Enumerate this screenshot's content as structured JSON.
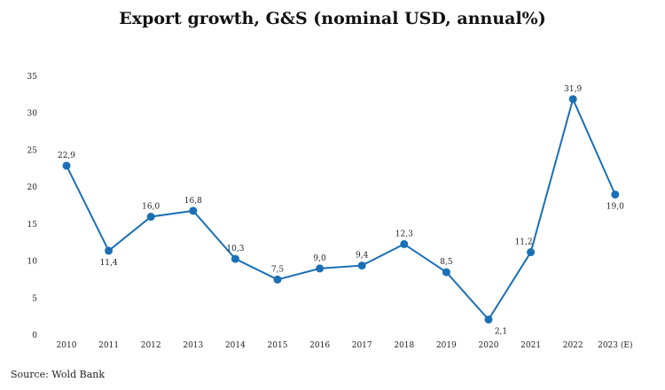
{
  "chart_data": {
    "type": "line",
    "title": "Export growth, G&S (nominal USD, annual%)",
    "xlabel": "",
    "ylabel": "",
    "categories": [
      "2010",
      "2011",
      "2012",
      "2013",
      "2014",
      "2015",
      "2016",
      "2017",
      "2018",
      "2019",
      "2020",
      "2021",
      "2022",
      "2023 (E)"
    ],
    "series": [
      {
        "values": [
          22.9,
          11.4,
          16.0,
          16.8,
          10.3,
          7.5,
          9.0,
          9.4,
          12.3,
          8.5,
          2.1,
          11.2,
          31.9,
          19.0
        ],
        "labels": [
          "22,9",
          "11,4",
          "16,0",
          "16,8",
          "10,3",
          "7,5",
          "9,0",
          "9,4",
          "12,3",
          "8,5",
          "2,1",
          "11,2",
          "31,9",
          "19,0"
        ],
        "color": "#1a6fb5"
      }
    ],
    "ylim": [
      0,
      35
    ],
    "yticks": [
      "0",
      "5",
      "10",
      "15",
      "20",
      "25",
      "30",
      "35"
    ],
    "grid": false,
    "legend": "none"
  },
  "source": "Source: Wold Bank"
}
